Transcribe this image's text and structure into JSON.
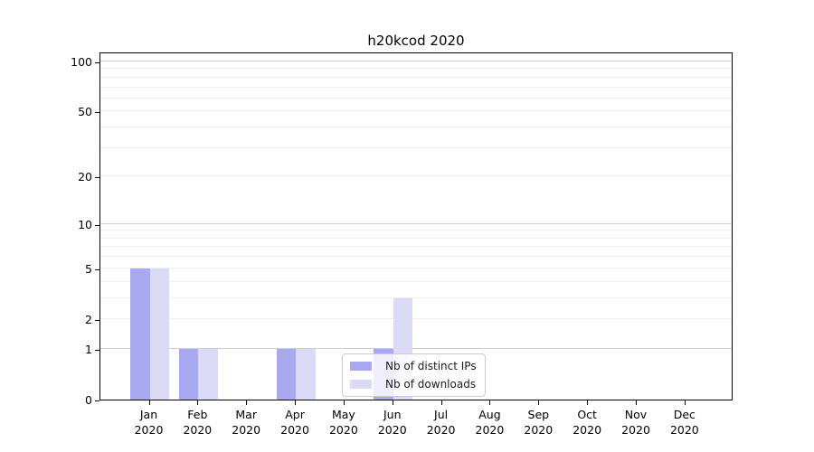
{
  "chart_data": {
    "type": "bar",
    "title": "h20kcod 2020",
    "categories": [
      "Jan",
      "Feb",
      "Mar",
      "Apr",
      "May",
      "Jun",
      "Jul",
      "Aug",
      "Sep",
      "Oct",
      "Nov",
      "Dec"
    ],
    "category_year": "2020",
    "series": [
      {
        "name": "Nb of distinct IPs",
        "color": "#a9a9f2",
        "values": [
          5,
          1,
          0,
          1,
          0,
          1,
          0,
          0,
          0,
          0,
          0,
          0
        ]
      },
      {
        "name": "Nb of downloads",
        "color": "#dbdbf8",
        "values": [
          5,
          1,
          0,
          1,
          0,
          3,
          0,
          0,
          0,
          0,
          0,
          0
        ]
      }
    ],
    "y_axis": {
      "scale": "log1p",
      "ticks": [
        0,
        1,
        2,
        5,
        10,
        20,
        50,
        100
      ],
      "major_gridlines": [
        1,
        10,
        100
      ],
      "minor_gridlines": [
        2,
        3,
        4,
        5,
        6,
        7,
        8,
        9,
        20,
        30,
        40,
        50,
        60,
        70,
        80,
        90
      ],
      "ylim": [
        0,
        115
      ]
    },
    "legend": {
      "position": "lower-right-of-center",
      "entries": [
        "Nb of distinct IPs",
        "Nb of downloads"
      ]
    },
    "grid": "horizontal",
    "colors": {
      "major_grid": "#d0d0d0",
      "minor_grid": "#eeeeee",
      "spine": "#000000",
      "background": "#ffffff",
      "text": "#000000"
    }
  }
}
